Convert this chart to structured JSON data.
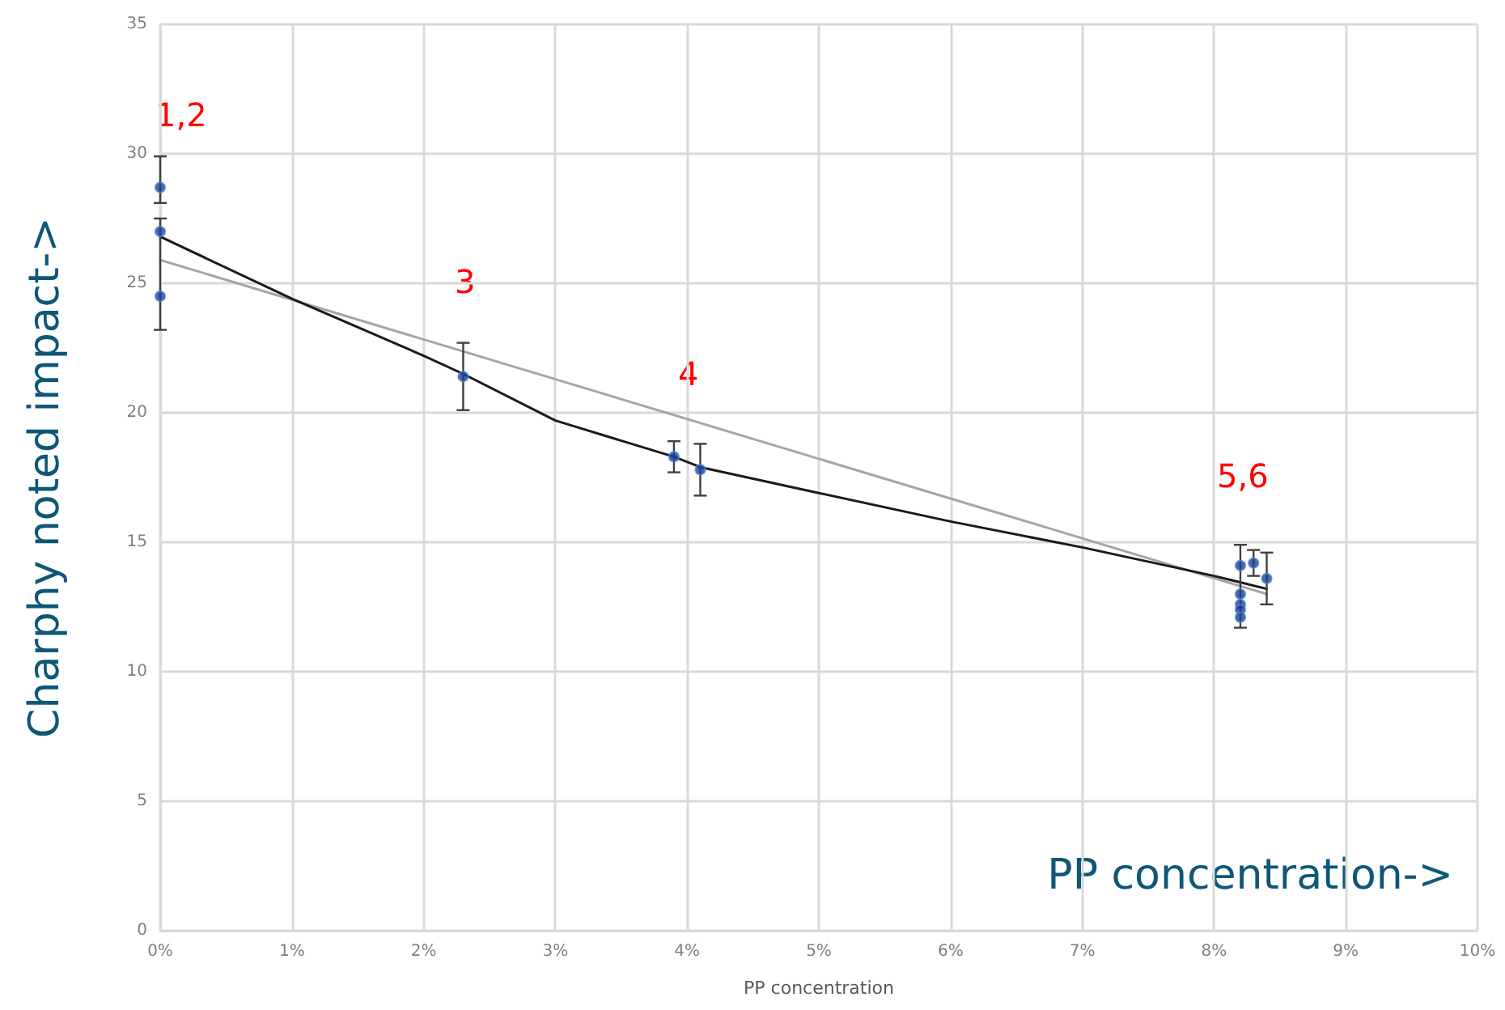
{
  "chart_data": {
    "type": "scatter",
    "xlabel": "PP concentration",
    "ylabel": "Charphy noted impact->",
    "annotations": [
      "1,2",
      "3",
      "4",
      "5,6",
      "PP concentration->"
    ],
    "xlim": [
      0,
      10
    ],
    "xticks": [
      {
        "value": 0,
        "label": "0%"
      },
      {
        "value": 1,
        "label": "1%"
      },
      {
        "value": 2,
        "label": "2%"
      },
      {
        "value": 3,
        "label": "3%"
      },
      {
        "value": 4,
        "label": "4%"
      },
      {
        "value": 5,
        "label": "5%"
      },
      {
        "value": 6,
        "label": "6%"
      },
      {
        "value": 7,
        "label": "7%"
      },
      {
        "value": 8,
        "label": "8%"
      },
      {
        "value": 9,
        "label": "9%"
      },
      {
        "value": 10,
        "label": "10%"
      }
    ],
    "ylim": [
      0,
      35
    ],
    "yticks": [
      0,
      5,
      10,
      15,
      20,
      25,
      30,
      35
    ],
    "grid": true,
    "series": [
      {
        "type": "line",
        "color": "#a6a6a6",
        "marker": "none",
        "x": [
          0,
          8.4
        ],
        "values": [
          25.9,
          13.0
        ]
      },
      {
        "type": "line",
        "color": "#1a1a1a",
        "marker": "none",
        "x": [
          0,
          1,
          2,
          2.3,
          3,
          3.9,
          4.1,
          5,
          6,
          7,
          8,
          8.4
        ],
        "values": [
          26.8,
          24.4,
          22.2,
          21.5,
          19.7,
          18.3,
          17.9,
          16.9,
          15.8,
          14.8,
          13.7,
          13.2
        ]
      },
      {
        "color": "#1f3f8f",
        "marker": "circle",
        "x": [
          0,
          0,
          0,
          2.3,
          3.9,
          4.1,
          8.2,
          8.2,
          8.2,
          8.2,
          8.2,
          8.3,
          8.4
        ],
        "values": [
          28.7,
          27.0,
          24.5,
          21.4,
          18.3,
          17.8,
          14.1,
          13.0,
          12.6,
          12.4,
          12.1,
          14.2,
          13.6
        ],
        "errors": [
          [
            28.1,
            29.9
          ],
          null,
          [
            23.2,
            27.5
          ],
          [
            20.1,
            22.7
          ],
          [
            17.7,
            18.9
          ],
          [
            16.8,
            18.8
          ],
          [
            11.7,
            14.9
          ],
          null,
          null,
          null,
          null,
          [
            13.7,
            14.7
          ],
          [
            12.6,
            14.6
          ]
        ]
      }
    ]
  }
}
